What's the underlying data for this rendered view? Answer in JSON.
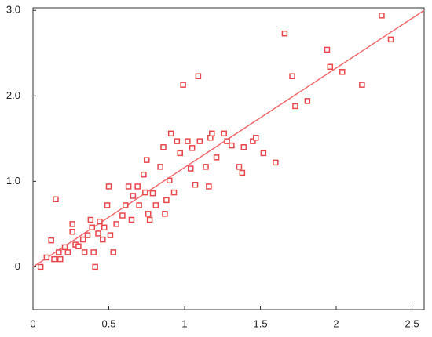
{
  "chart_data": {
    "type": "scatter",
    "series": [
      {
        "color": "#e8474c",
        "x": [
          0.05,
          0.09,
          0.12,
          0.15,
          0.14,
          0.17,
          0.18,
          0.21,
          0.23,
          0.26,
          0.26,
          0.28,
          0.3,
          0.33,
          0.34,
          0.36,
          0.38,
          0.39,
          0.4,
          0.41,
          0.43,
          0.44,
          0.46,
          0.47,
          0.49,
          0.5,
          0.51,
          0.53,
          0.55,
          0.59,
          0.61,
          0.63,
          0.65,
          0.66,
          0.69,
          0.7,
          0.73,
          0.74,
          0.75,
          0.76,
          0.77,
          0.79,
          0.81,
          0.84,
          0.86,
          0.87,
          0.88,
          0.9,
          0.91,
          0.93,
          0.95,
          0.97,
          0.99,
          1.02,
          1.04,
          1.05,
          1.09,
          1.07,
          1.1,
          1.14,
          1.16,
          1.17,
          1.18,
          1.21,
          1.26,
          1.28,
          1.31,
          1.36,
          1.38,
          1.39,
          1.45,
          1.47,
          1.52,
          1.6,
          1.66,
          1.71,
          1.73,
          1.81,
          1.94,
          1.96,
          2.04,
          2.17,
          2.3,
          2.36
        ],
        "values": [
          0,
          0.11,
          0.31,
          0.79,
          0.09,
          0.17,
          0.09,
          0.23,
          0.17,
          0.5,
          0.41,
          0.26,
          0.24,
          0.32,
          0.17,
          0.37,
          0.55,
          0.46,
          0.17,
          0,
          0.39,
          0.53,
          0.32,
          0.46,
          0.72,
          0.94,
          0.37,
          0.17,
          0.5,
          0.6,
          0.72,
          0.94,
          0.55,
          0.83,
          0.94,
          0.72,
          1.08,
          0.87,
          1.25,
          0.62,
          0.55,
          0.86,
          0.72,
          1.17,
          1.4,
          0.62,
          0.78,
          1.01,
          1.56,
          0.87,
          1.47,
          1.33,
          2.13,
          1.47,
          1.15,
          1.39,
          2.23,
          0.96,
          1.47,
          1.17,
          0.94,
          1.51,
          1.56,
          1.28,
          1.56,
          1.47,
          1.42,
          1.17,
          1.1,
          1.4,
          1.47,
          1.51,
          1.33,
          1.22,
          2.73,
          2.23,
          1.88,
          1.94,
          2.54,
          2.34,
          2.28,
          2.13,
          2.94,
          2.66
        ]
      }
    ],
    "trendline": {
      "color": "#ef6a6e",
      "x": [
        0,
        2.58
      ],
      "values": [
        0,
        3.0
      ]
    },
    "xlim": [
      0,
      2.58
    ],
    "ylim": [
      -0.5,
      3.03
    ],
    "xticks": [
      0,
      0.5,
      1,
      1.5,
      2,
      2.5
    ],
    "yticks": [
      {
        "value": 0,
        "label": "0"
      },
      {
        "value": 1,
        "label": "1.0"
      },
      {
        "value": 2,
        "label": "2.0"
      },
      {
        "value": 3,
        "label": "3.0"
      }
    ]
  }
}
